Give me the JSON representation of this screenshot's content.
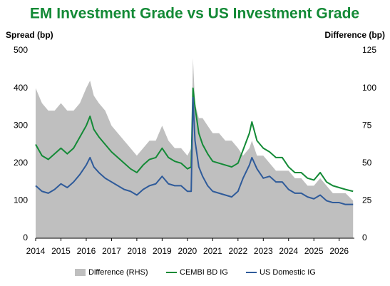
{
  "chart_data": {
    "type": "line",
    "title": "EM Investment Grade vs US Investment Grade",
    "y_label": "Spread (bp)",
    "y2_label": "Difference (bp)",
    "x": [
      2014.0,
      2014.25,
      2014.5,
      2014.75,
      2015.0,
      2015.25,
      2015.5,
      2015.75,
      2016.0,
      2016.15,
      2016.3,
      2016.5,
      2016.75,
      2017.0,
      2017.25,
      2017.5,
      2017.75,
      2018.0,
      2018.25,
      2018.5,
      2018.75,
      2019.0,
      2019.25,
      2019.5,
      2019.75,
      2020.0,
      2020.15,
      2020.22,
      2020.3,
      2020.45,
      2020.6,
      2020.8,
      2021.0,
      2021.25,
      2021.5,
      2021.75,
      2022.0,
      2022.2,
      2022.45,
      2022.55,
      2022.75,
      2023.0,
      2023.25,
      2023.5,
      2023.75,
      2024.0,
      2024.25,
      2024.5,
      2024.75,
      2025.0,
      2025.25,
      2025.5,
      2025.75,
      2026.0,
      2026.25,
      2026.55
    ],
    "series": [
      {
        "name": "Difference (RHS)",
        "type": "area",
        "axis": "y2",
        "color": "#bfbfbf",
        "values": [
          100,
          90,
          85,
          85,
          90,
          85,
          85,
          90,
          100,
          105,
          95,
          90,
          85,
          75,
          70,
          65,
          60,
          55,
          60,
          65,
          65,
          75,
          65,
          60,
          60,
          55,
          60,
          120,
          90,
          80,
          80,
          75,
          70,
          70,
          65,
          65,
          60,
          55,
          60,
          65,
          55,
          55,
          50,
          45,
          45,
          45,
          40,
          40,
          35,
          35,
          40,
          35,
          30,
          30,
          30,
          25
        ]
      },
      {
        "name": "CEMBI BD IG",
        "type": "line",
        "color": "#138a36",
        "values": [
          250,
          220,
          210,
          225,
          240,
          225,
          240,
          270,
          300,
          325,
          290,
          270,
          250,
          230,
          215,
          200,
          185,
          175,
          195,
          210,
          215,
          240,
          215,
          205,
          200,
          185,
          190,
          400,
          350,
          280,
          250,
          225,
          205,
          200,
          195,
          190,
          200,
          235,
          280,
          310,
          260,
          240,
          230,
          215,
          215,
          190,
          175,
          175,
          160,
          155,
          175,
          150,
          140,
          135,
          130,
          125
        ]
      },
      {
        "name": "US Domestic IG",
        "type": "line",
        "color": "#2f5b9a",
        "values": [
          140,
          125,
          120,
          130,
          145,
          135,
          150,
          170,
          195,
          215,
          190,
          175,
          160,
          150,
          140,
          130,
          125,
          115,
          130,
          140,
          145,
          165,
          145,
          140,
          140,
          125,
          125,
          375,
          260,
          190,
          165,
          140,
          125,
          120,
          115,
          110,
          125,
          160,
          195,
          215,
          185,
          160,
          165,
          150,
          150,
          130,
          120,
          120,
          110,
          105,
          115,
          100,
          95,
          95,
          90,
          90
        ]
      }
    ],
    "xlim": [
      2014,
      2026.6
    ],
    "xticks": [
      2014,
      2015,
      2016,
      2017,
      2018,
      2019,
      2020,
      2021,
      2022,
      2023,
      2024,
      2025,
      2026
    ],
    "ylim": [
      0,
      500
    ],
    "yticks": [
      0,
      100,
      200,
      300,
      400,
      500
    ],
    "y2lim": [
      0,
      125
    ],
    "y2ticks": [
      0,
      25,
      50,
      75,
      100,
      125
    ],
    "legend": "bottom"
  }
}
